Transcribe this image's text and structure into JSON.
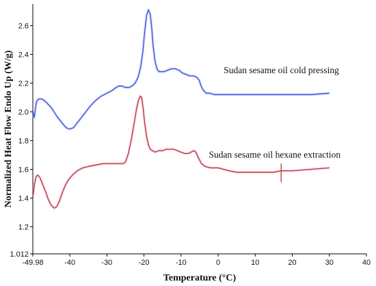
{
  "chart_data": {
    "type": "line",
    "title": "",
    "xlabel": "Temperature (°C)",
    "ylabel": "Normalized Heat Flow Endo Up (W/g)",
    "xlim": [
      -49.98,
      40
    ],
    "ylim": [
      1.012,
      2.75
    ],
    "x_ticks": [
      -49.98,
      -40,
      -30,
      -20,
      -10,
      0,
      10,
      20,
      30,
      40
    ],
    "x_tick_labels": [
      "-49.98",
      "-40",
      "-30",
      "-20",
      "-10",
      "0",
      "10",
      "20",
      "30",
      "40"
    ],
    "y_ticks": [
      1.012,
      1.2,
      1.4,
      1.6,
      1.8,
      2.0,
      2.2,
      2.4,
      2.6
    ],
    "y_tick_labels": [
      "1.012",
      "1.2",
      "1.4",
      "1.6",
      "1.8",
      "2.0",
      "2.2",
      "2.4",
      "2.6"
    ],
    "grid": false,
    "legend": "none",
    "series": [
      {
        "color": "#3d4fd6",
        "x": [
          -49.9,
          -49.6,
          -49.3,
          -49.0,
          -48.4,
          -47.5,
          -46.5,
          -45.0,
          -43.5,
          -42.0,
          -41.0,
          -40.0,
          -39.0,
          -37.5,
          -36.0,
          -34.5,
          -33.0,
          -31.5,
          -30.0,
          -28.5,
          -27.5,
          -26.8,
          -26.0,
          -25.0,
          -24.0,
          -23.2,
          -22.4,
          -21.6,
          -20.9,
          -20.3,
          -19.8,
          -19.3,
          -18.8,
          -18.3,
          -17.9,
          -17.5,
          -17.0,
          -16.5,
          -16.0,
          -15.4,
          -14.6,
          -13.6,
          -12.6,
          -11.6,
          -10.6,
          -9.6,
          -8.6,
          -7.6,
          -6.6,
          -5.7,
          -5.1,
          -4.6,
          -4.0,
          -3.2,
          -2.3,
          -1.0,
          0.0,
          2.0,
          5.0,
          10.0,
          15.0,
          20.0,
          25.0,
          30.0
        ],
        "y": [
          2.0,
          1.96,
          2.02,
          2.07,
          2.09,
          2.09,
          2.07,
          2.03,
          1.97,
          1.92,
          1.89,
          1.88,
          1.89,
          1.94,
          1.99,
          2.04,
          2.08,
          2.11,
          2.13,
          2.15,
          2.17,
          2.18,
          2.18,
          2.17,
          2.17,
          2.18,
          2.2,
          2.24,
          2.31,
          2.42,
          2.56,
          2.67,
          2.71,
          2.68,
          2.58,
          2.45,
          2.35,
          2.3,
          2.28,
          2.28,
          2.28,
          2.29,
          2.3,
          2.3,
          2.29,
          2.27,
          2.26,
          2.25,
          2.25,
          2.24,
          2.22,
          2.18,
          2.15,
          2.13,
          2.13,
          2.12,
          2.12,
          2.12,
          2.12,
          2.12,
          2.12,
          2.12,
          2.12,
          2.13
        ]
      },
      {
        "color": "#b03a2e",
        "x": [
          -49.9,
          -49.5,
          -49.1,
          -48.6,
          -48.0,
          -47.4,
          -46.6,
          -45.8,
          -45.0,
          -44.2,
          -43.5,
          -42.8,
          -42.0,
          -41.2,
          -40.3,
          -39.3,
          -38.0,
          -36.5,
          -35.0,
          -33.0,
          -31.0,
          -29.0,
          -27.0,
          -25.6,
          -25.0,
          -24.2,
          -23.4,
          -22.6,
          -22.0,
          -21.5,
          -21.0,
          -20.6,
          -20.2,
          -19.8,
          -19.3,
          -18.8,
          -18.3,
          -17.7,
          -17.0,
          -16.0,
          -15.0,
          -14.0,
          -13.0,
          -12.0,
          -11.0,
          -10.0,
          -9.0,
          -8.0,
          -7.3,
          -6.6,
          -6.0,
          -5.3,
          -4.5,
          -3.5,
          -2.0,
          0.0,
          3.0,
          5.0,
          10.0,
          15.0,
          17.0,
          20.0,
          25.0,
          30.0
        ],
        "y": [
          1.42,
          1.5,
          1.55,
          1.56,
          1.54,
          1.5,
          1.45,
          1.39,
          1.35,
          1.33,
          1.34,
          1.38,
          1.44,
          1.49,
          1.53,
          1.56,
          1.59,
          1.61,
          1.62,
          1.63,
          1.64,
          1.64,
          1.64,
          1.64,
          1.65,
          1.71,
          1.81,
          1.93,
          2.02,
          2.08,
          2.11,
          2.1,
          2.02,
          1.92,
          1.83,
          1.77,
          1.74,
          1.73,
          1.72,
          1.73,
          1.73,
          1.74,
          1.74,
          1.74,
          1.73,
          1.72,
          1.71,
          1.71,
          1.72,
          1.73,
          1.72,
          1.68,
          1.64,
          1.62,
          1.61,
          1.61,
          1.59,
          1.58,
          1.58,
          1.58,
          1.59,
          1.59,
          1.6,
          1.61
        ]
      }
    ],
    "annotations": [
      {
        "text": "Sudan sesame oil cold pressing",
        "x": 1.5,
        "y": 2.27
      },
      {
        "text": "Sudan sesame oil hexane extraction",
        "x": -2.5,
        "y": 1.68
      }
    ]
  }
}
